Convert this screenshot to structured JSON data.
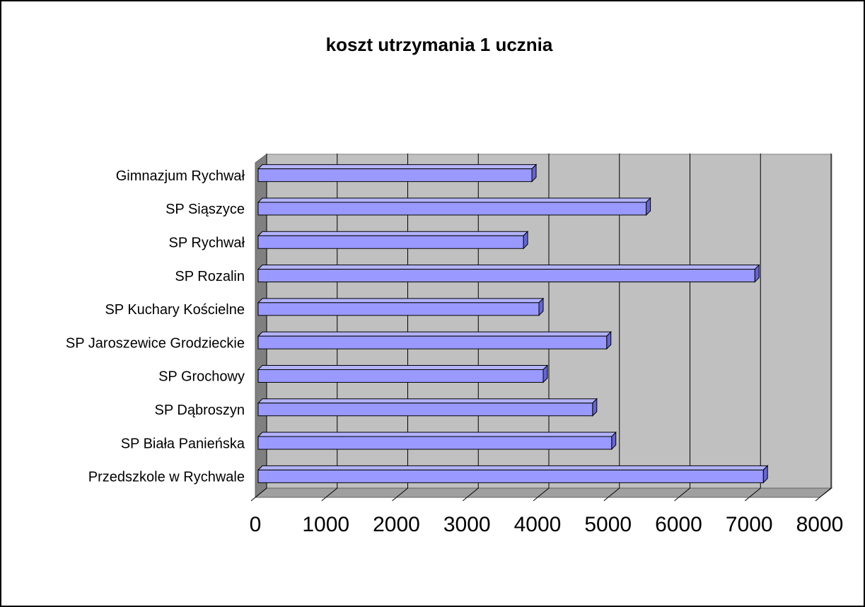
{
  "chart_data": {
    "type": "bar",
    "orientation": "horizontal",
    "title": "koszt utrzymania 1 ucznia",
    "categories": [
      "Gimnazjum Rychwał",
      "SP Siąszyce",
      "SP Rychwał",
      "SP Rozalin",
      "SP Kuchary Kościelne",
      "SP Jaroszewice Grodzieckie",
      "SP Grochowy",
      "SP Dąbroszyn",
      "SP Biała Panieńska",
      "Przedszkole w Rychwale"
    ],
    "values": [
      3880,
      5500,
      3760,
      7040,
      3980,
      4940,
      4040,
      4740,
      5010,
      7160
    ],
    "color": "#9999ff",
    "xlim": [
      0,
      8000
    ],
    "xticks": [
      0,
      1000,
      2000,
      3000,
      4000,
      5000,
      6000,
      7000,
      8000
    ],
    "grid": true
  }
}
